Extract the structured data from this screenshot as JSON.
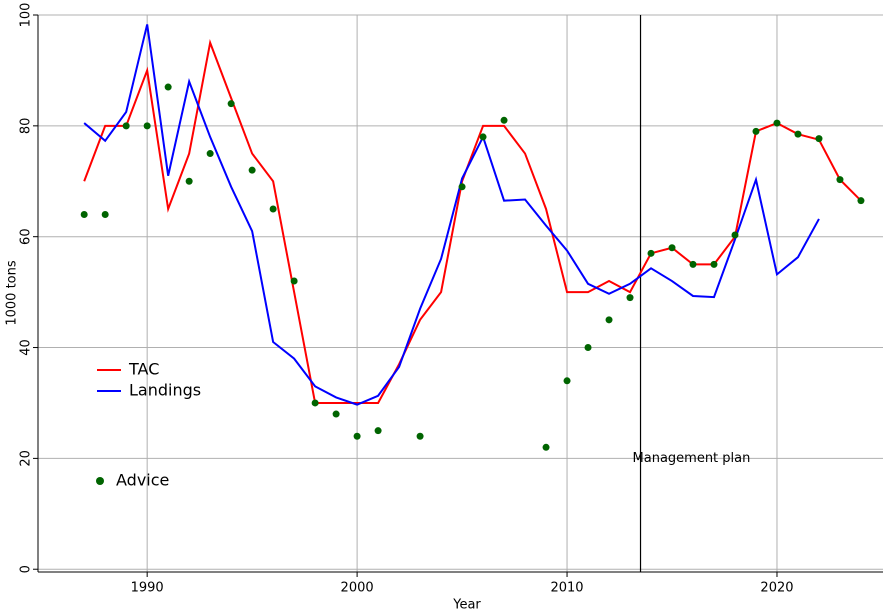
{
  "chart_data": {
    "type": "line",
    "xlabel": "Year",
    "ylabel": "1000 tons",
    "x": [
      1987,
      1988,
      1989,
      1990,
      1991,
      1992,
      1993,
      1994,
      1995,
      1996,
      1997,
      1998,
      1999,
      2000,
      2001,
      2002,
      2003,
      2004,
      2005,
      2006,
      2007,
      2008,
      2009,
      2010,
      2011,
      2012,
      2013,
      2014,
      2015,
      2016,
      2017,
      2018,
      2019,
      2020,
      2021,
      2022,
      2023,
      2024
    ],
    "series": [
      {
        "name": "TAC",
        "color": "#ff0000",
        "kind": "line",
        "values": [
          70,
          80,
          80,
          90,
          65,
          75,
          95,
          85,
          75,
          70,
          50,
          30,
          30,
          30,
          30,
          37,
          45,
          50,
          70,
          80,
          80,
          75,
          65,
          50,
          50,
          52,
          50,
          57,
          58,
          55,
          55,
          60,
          79,
          80.5,
          78.5,
          77.5,
          70.3,
          66.5
        ]
      },
      {
        "name": "Landings",
        "color": "#0000ff",
        "kind": "line",
        "values": [
          80.5,
          77.3,
          82.5,
          98.3,
          71,
          88,
          78,
          69,
          61,
          41,
          38,
          33,
          31,
          29.7,
          31.3,
          36.5,
          47,
          56,
          70.5,
          78,
          66.5,
          66.7,
          62,
          57.5,
          51.5,
          49.7,
          51.5,
          54.3,
          52,
          49.3,
          49.1,
          59.5,
          70.3,
          53.2,
          56.3,
          63.2,
          null,
          null
        ]
      },
      {
        "name": "Advice",
        "color": "#006400",
        "kind": "scatter",
        "values": [
          64,
          64,
          80,
          80,
          87,
          70,
          75,
          84,
          72,
          65,
          52,
          30,
          28,
          24,
          25,
          null,
          24,
          null,
          69,
          78,
          81,
          null,
          22,
          34,
          40,
          45,
          49,
          57,
          58,
          55,
          55,
          60.3,
          79,
          80.5,
          78.5,
          77.7,
          70.3,
          66.5
        ]
      }
    ],
    "xlim": [
      1984.8,
      2025.05
    ],
    "ylim": [
      -0.5,
      100
    ],
    "xticks": [
      1990,
      2000,
      2010,
      2020
    ],
    "yticks": [
      0,
      20,
      40,
      60,
      80,
      100
    ],
    "grid": true,
    "vline": {
      "x": 2013.5,
      "label": "Management plan"
    }
  }
}
